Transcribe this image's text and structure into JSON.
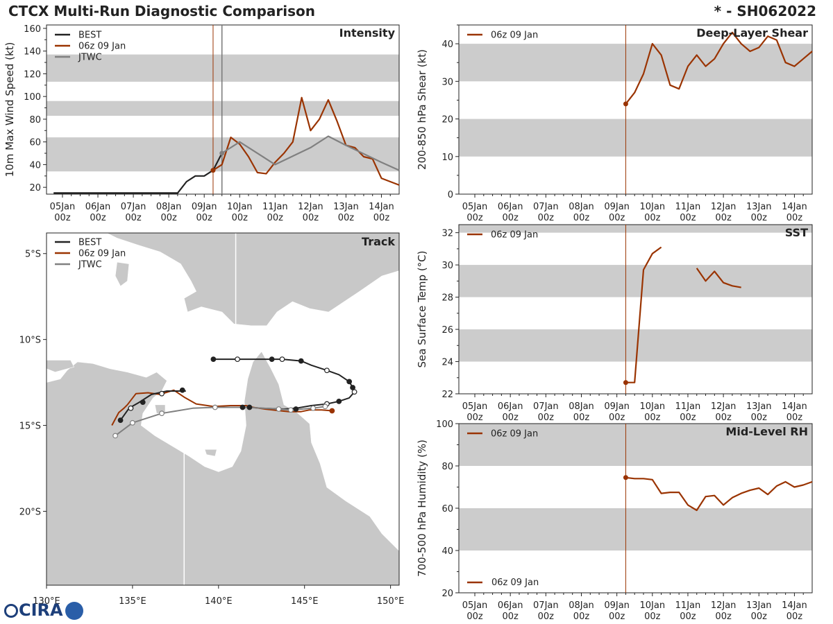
{
  "header": {
    "title": "CTCX Multi-Run Diagnostic Comparison",
    "storm": "* - SH062022"
  },
  "logo": {
    "text": "CIRA"
  },
  "colors": {
    "best": "#222222",
    "run": "#9a3300",
    "jtwc": "#808080",
    "band": "#cccccc",
    "land": "#c8c8c8",
    "vline_jtwc": "#777777"
  },
  "time_axis": {
    "ticks": [
      {
        "day": 0,
        "line1": "05Jan",
        "line2": "00z"
      },
      {
        "day": 1,
        "line1": "06Jan",
        "line2": "00z"
      },
      {
        "day": 2,
        "line1": "07Jan",
        "line2": "00z"
      },
      {
        "day": 3,
        "line1": "08Jan",
        "line2": "00z"
      },
      {
        "day": 4,
        "line1": "09Jan",
        "line2": "00z"
      },
      {
        "day": 5,
        "line1": "10Jan",
        "line2": "00z"
      },
      {
        "day": 6,
        "line1": "11Jan",
        "line2": "00z"
      },
      {
        "day": 7,
        "line1": "12Jan",
        "line2": "00z"
      },
      {
        "day": 8,
        "line1": "13Jan",
        "line2": "00z"
      },
      {
        "day": 9,
        "line1": "14Jan",
        "line2": "00z"
      }
    ],
    "xlim_days": [
      -0.45,
      9.5
    ],
    "init_day": 4.25,
    "jtwc_day": 4.5
  },
  "chart_data": [
    {
      "id": "intensity",
      "type": "line",
      "title": "Intensity",
      "ylabel": "10m Max Wind Speed (kt)",
      "ylim": [
        14,
        163
      ],
      "yticks": [
        20,
        40,
        60,
        80,
        100,
        120,
        140,
        160
      ],
      "bands": [
        [
          34,
          64
        ],
        [
          83,
          96
        ],
        [
          113,
          137
        ]
      ],
      "legend": [
        "BEST",
        "06z 09 Jan",
        "JTWC"
      ],
      "series": [
        {
          "name": "BEST",
          "key": "best",
          "x": [
            -0.25,
            3.25,
            3.5,
            3.75,
            4.0,
            4.25,
            4.5
          ],
          "y": [
            15,
            15,
            25,
            30,
            30,
            35,
            50
          ]
        },
        {
          "name": "06z 09 Jan",
          "key": "run",
          "x": [
            4.25,
            4.5,
            4.75,
            5.0,
            5.25,
            5.5,
            5.75,
            6.0,
            6.25,
            6.5,
            6.75,
            7.0,
            7.25,
            7.5,
            7.75,
            8.0,
            8.25,
            8.5,
            8.75,
            9.0,
            9.25,
            9.5
          ],
          "y": [
            35,
            40,
            64,
            58,
            47,
            33,
            32,
            42,
            50,
            60,
            99,
            70,
            80,
            97,
            78,
            57,
            55,
            47,
            45,
            28,
            25,
            22
          ]
        },
        {
          "name": "JTWC",
          "key": "jtwc",
          "x": [
            4.5,
            5.0,
            6.0,
            7.0,
            7.5,
            8.0,
            9.0,
            9.5
          ],
          "y": [
            50,
            60,
            40,
            55,
            65,
            57,
            42,
            35
          ]
        }
      ]
    },
    {
      "id": "shear",
      "type": "line",
      "title": "Deep-Layer Shear",
      "ylabel": "200-850 hPa Shear (kt)",
      "ylim": [
        0,
        45
      ],
      "yticks": [
        0,
        10,
        20,
        30,
        40
      ],
      "bands": [
        [
          10,
          20
        ],
        [
          30,
          40
        ]
      ],
      "legend": [
        "06z 09 Jan"
      ],
      "series": [
        {
          "name": "06z 09 Jan",
          "key": "run",
          "x": [
            4.25,
            4.5,
            4.75,
            5.0,
            5.25,
            5.5,
            5.75,
            6.0,
            6.25,
            6.5,
            6.75,
            7.0,
            7.25,
            7.5,
            7.75,
            8.0,
            8.25,
            8.5,
            8.75,
            9.0,
            9.25,
            9.5
          ],
          "y": [
            24,
            27,
            32,
            40,
            37,
            29,
            28,
            34,
            37,
            34,
            36,
            40,
            43,
            40,
            38,
            39,
            42,
            41,
            35,
            34,
            36,
            38
          ]
        }
      ]
    },
    {
      "id": "sst",
      "type": "line",
      "title": "SST",
      "ylabel": "Sea Surface Temp (°C)",
      "ylim": [
        22,
        32.5
      ],
      "yticks": [
        22,
        24,
        26,
        28,
        30,
        32
      ],
      "bands": [
        [
          24,
          26
        ],
        [
          28,
          30
        ],
        [
          32,
          32.5
        ]
      ],
      "legend": [
        "06z 09 Jan"
      ],
      "series": [
        {
          "name": "06z 09 Jan",
          "key": "run",
          "x": [
            4.25,
            4.5,
            4.75,
            5.0,
            5.25
          ],
          "y": [
            22.7,
            22.7,
            29.7,
            30.7,
            31.1
          ]
        },
        {
          "name": "06z 09 Jan (cont.)",
          "key": "run",
          "x": [
            6.25,
            6.5,
            6.75,
            7.0,
            7.25,
            7.5
          ],
          "y": [
            29.8,
            29.0,
            29.6,
            28.9,
            28.7,
            28.6
          ]
        }
      ]
    },
    {
      "id": "rh",
      "type": "line",
      "title": "Mid-Level RH",
      "ylabel": "700-500 hPa Humidity (%)",
      "ylim": [
        20,
        100
      ],
      "yticks": [
        20,
        40,
        60,
        80,
        100
      ],
      "bands": [
        [
          40,
          60
        ],
        [
          80,
          100
        ]
      ],
      "legend": [
        "06z 09 Jan"
      ],
      "series": [
        {
          "name": "06z 09 Jan",
          "key": "run",
          "x": [
            4.25,
            4.5,
            4.75,
            5.0,
            5.25,
            5.5,
            5.75,
            6.0,
            6.25,
            6.5,
            6.75,
            7.0,
            7.25,
            7.5,
            7.75,
            8.0,
            8.25,
            8.5,
            8.75,
            9.0,
            9.25,
            9.5
          ],
          "y": [
            74.5,
            74,
            74,
            73.5,
            67,
            67.5,
            67.5,
            61.5,
            59,
            65.5,
            66,
            61.5,
            65,
            67,
            68.5,
            69.5,
            66.5,
            70.5,
            72.5,
            70,
            71,
            72.5
          ]
        }
      ]
    },
    {
      "id": "track",
      "type": "scatter",
      "title": "Track",
      "xlim": [
        130,
        150.5
      ],
      "ylim": [
        -24.3,
        -3.8
      ],
      "xticks": [
        {
          "v": 130,
          "label": "130°E"
        },
        {
          "v": 135,
          "label": "135°E"
        },
        {
          "v": 140,
          "label": "140°E"
        },
        {
          "v": 145,
          "label": "145°E"
        },
        {
          "v": 150,
          "label": "150°E"
        }
      ],
      "yticks": [
        {
          "v": -5,
          "label": "5°S"
        },
        {
          "v": -10,
          "label": "10°S"
        },
        {
          "v": -15,
          "label": "15°S"
        },
        {
          "v": -20,
          "label": "20°S"
        }
      ],
      "legend": [
        "BEST",
        "06z 09 Jan",
        "JTWC"
      ],
      "series": [
        {
          "name": "BEST",
          "key": "best",
          "lon": [
            139.7,
            141.1,
            143.1,
            143.7,
            144.8,
            145.4,
            146.3,
            147.0,
            147.6,
            147.8,
            147.9,
            147.6,
            147.0,
            146.3,
            145.4,
            144.5,
            143.8,
            142.5,
            141.8,
            141.4
          ],
          "lat": [
            -11.15,
            -11.15,
            -11.15,
            -11.15,
            -11.25,
            -11.5,
            -11.8,
            -12.05,
            -12.45,
            -12.8,
            -13.05,
            -13.4,
            -13.6,
            -13.75,
            -13.85,
            -14.0,
            -14.05,
            -14.0,
            -13.95,
            -13.95
          ],
          "markers": [
            {
              "lon": 139.7,
              "lat": -11.15,
              "fill": true
            },
            {
              "lon": 141.1,
              "lat": -11.15,
              "fill": false
            },
            {
              "lon": 143.1,
              "lat": -11.15,
              "fill": true
            },
            {
              "lon": 143.7,
              "lat": -11.15,
              "fill": false
            },
            {
              "lon": 144.8,
              "lat": -11.25,
              "fill": true
            },
            {
              "lon": 146.3,
              "lat": -11.8,
              "fill": false
            },
            {
              "lon": 147.6,
              "lat": -12.45,
              "fill": true
            },
            {
              "lon": 147.8,
              "lat": -12.8,
              "fill": true
            },
            {
              "lon": 147.9,
              "lat": -13.05,
              "fill": false
            },
            {
              "lon": 147.0,
              "lat": -13.6,
              "fill": true
            },
            {
              "lon": 146.3,
              "lat": -13.75,
              "fill": false
            },
            {
              "lon": 144.5,
              "lat": -14.05,
              "fill": true
            },
            {
              "lon": 141.8,
              "lat": -13.95,
              "fill": true
            },
            {
              "lon": 141.4,
              "lat": -13.95,
              "fill": true
            }
          ]
        },
        {
          "name": "06z 09 Jan",
          "key": "run",
          "lon": [
            146.6,
            146.0,
            145.3,
            144.8,
            144.1,
            143.6,
            142.7,
            142.0,
            141.6,
            140.7,
            139.7,
            138.7,
            138.0,
            137.4,
            136.6,
            135.9,
            135.2,
            134.7,
            134.5,
            134.2,
            133.8
          ],
          "lat": [
            -14.15,
            -14.1,
            -14.1,
            -14.2,
            -14.2,
            -14.15,
            -14.05,
            -13.95,
            -13.85,
            -13.85,
            -13.9,
            -13.75,
            -13.35,
            -12.95,
            -13.2,
            -13.1,
            -13.15,
            -13.8,
            -14.0,
            -14.25,
            -15.0
          ],
          "markers": [
            {
              "lon": 146.6,
              "lat": -14.15,
              "fill": true
            }
          ]
        },
        {
          "name": "JTWC",
          "key": "jtwc",
          "lon": [
            146.2,
            145.5,
            144.2,
            143.5,
            141.6,
            139.8,
            138.5,
            136.7,
            135.0,
            134.0
          ],
          "lat": [
            -13.9,
            -14.0,
            -14.1,
            -14.05,
            -13.95,
            -13.95,
            -14.0,
            -14.3,
            -14.85,
            -15.6
          ],
          "markers": [
            {
              "lon": 146.2,
              "lat": -13.9,
              "fill": false
            },
            {
              "lon": 145.5,
              "lat": -14.0,
              "fill": false
            },
            {
              "lon": 144.2,
              "lat": -14.1,
              "fill": false
            },
            {
              "lon": 143.5,
              "lat": -14.05,
              "fill": false
            },
            {
              "lon": 139.8,
              "lat": -13.95,
              "fill": false
            },
            {
              "lon": 136.7,
              "lat": -14.3,
              "fill": false
            },
            {
              "lon": 135.0,
              "lat": -14.85,
              "fill": false
            },
            {
              "lon": 134.0,
              "lat": -15.6,
              "fill": false
            }
          ]
        },
        {
          "name": "BEST (early)",
          "key": "best",
          "lon": [
            134.3,
            134.8,
            135.4,
            136.1,
            137.0,
            138.1
          ],
          "lat": [
            -14.7,
            -14.0,
            -13.65,
            -13.2,
            -13.0,
            -13.0
          ],
          "markers": [
            {
              "lon": 134.3,
              "lat": -14.7,
              "fill": true
            },
            {
              "lon": 134.9,
              "lat": -14.0,
              "fill": false
            },
            {
              "lon": 135.6,
              "lat": -13.65,
              "fill": true
            },
            {
              "lon": 136.7,
              "lat": -13.15,
              "fill": false
            },
            {
              "lon": 137.9,
              "lat": -12.95,
              "fill": true
            }
          ]
        }
      ]
    }
  ],
  "rh_legend_bottom": "06z 09 Jan"
}
